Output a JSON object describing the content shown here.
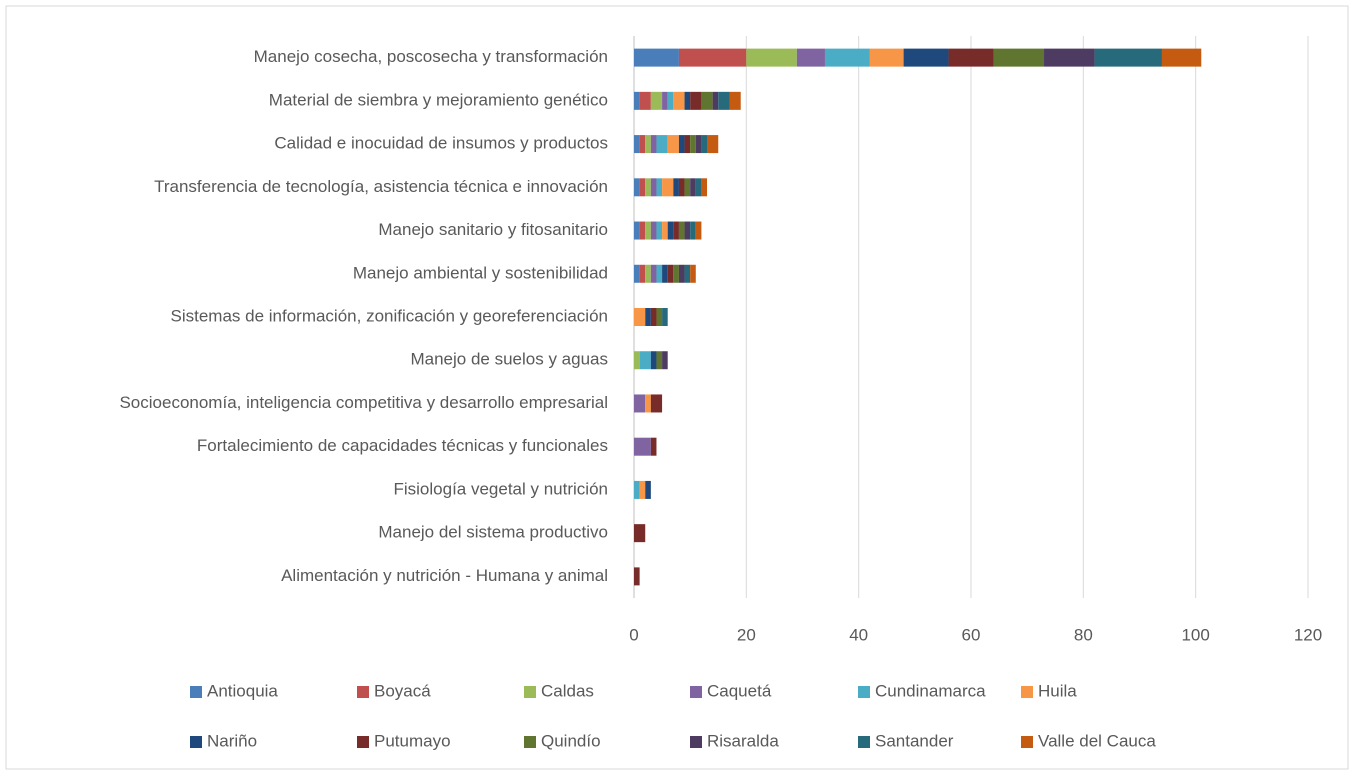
{
  "chart_data": {
    "type": "stacked-bar-horizontal",
    "categories": [
      "Manejo cosecha, poscosecha y transformación",
      "Material de siembra y mejoramiento genético",
      "Calidad e inocuidad de insumos y productos",
      "Transferencia de tecnología, asistencia técnica e innovación",
      "Manejo sanitario y fitosanitario",
      "Manejo ambiental y sostenibilidad",
      "Sistemas de información, zonificación y georeferenciación",
      "Manejo de suelos y aguas",
      "Socioeconomía, inteligencia competitiva y desarrollo empresarial",
      "Fortalecimiento de capacidades técnicas y funcionales",
      "Fisiología vegetal y nutrición",
      "Manejo del sistema productivo",
      "Alimentación y nutrición - Humana y animal"
    ],
    "series": [
      {
        "name": "Antioquia",
        "color": "#4a7ebb",
        "values": [
          8,
          1,
          1,
          1,
          1,
          1,
          0,
          0,
          0,
          0,
          0,
          0,
          0
        ]
      },
      {
        "name": "Boyacá",
        "color": "#c0504d",
        "values": [
          12,
          2,
          1,
          1,
          1,
          1,
          0,
          0,
          0,
          0,
          0,
          0,
          0
        ]
      },
      {
        "name": "Caldas",
        "color": "#9bbb59",
        "values": [
          9,
          2,
          1,
          1,
          1,
          1,
          0,
          1,
          0,
          0,
          0,
          0,
          0
        ]
      },
      {
        "name": "Caquetá",
        "color": "#8064a2",
        "values": [
          5,
          1,
          1,
          1,
          1,
          1,
          0,
          0,
          2,
          3,
          0,
          0,
          0
        ]
      },
      {
        "name": "Cundinamarca",
        "color": "#4bacc6",
        "values": [
          8,
          1,
          2,
          1,
          1,
          1,
          0,
          2,
          0,
          0,
          1,
          0,
          0
        ]
      },
      {
        "name": "Huila",
        "color": "#f79646",
        "values": [
          6,
          2,
          2,
          2,
          1,
          0,
          2,
          0,
          1,
          0,
          1,
          0,
          0
        ]
      },
      {
        "name": "Nariño",
        "color": "#1f497d",
        "values": [
          8,
          1,
          1,
          1,
          1,
          1,
          1,
          1,
          0,
          0,
          1,
          0,
          0
        ]
      },
      {
        "name": "Putumayo",
        "color": "#772c2a",
        "values": [
          8,
          2,
          1,
          1,
          1,
          1,
          1,
          0,
          2,
          1,
          0,
          2,
          1
        ]
      },
      {
        "name": "Quindío",
        "color": "#5f7530",
        "values": [
          9,
          2,
          1,
          1,
          1,
          1,
          1,
          1,
          0,
          0,
          0,
          0,
          0
        ]
      },
      {
        "name": "Risaralda",
        "color": "#4d3b62",
        "values": [
          9,
          1,
          1,
          1,
          1,
          1,
          0,
          1,
          0,
          0,
          0,
          0,
          0
        ]
      },
      {
        "name": "Santander",
        "color": "#276a7c",
        "values": [
          12,
          2,
          1,
          1,
          1,
          1,
          1,
          0,
          0,
          0,
          0,
          0,
          0
        ]
      },
      {
        "name": "Valle del Cauca",
        "color": "#c55a11",
        "values": [
          7,
          2,
          2,
          1,
          1,
          1,
          0,
          0,
          0,
          0,
          0,
          0,
          0
        ]
      }
    ],
    "xlim": [
      0,
      120
    ],
    "xticks": [
      0,
      20,
      40,
      60,
      80,
      100,
      120
    ],
    "grid": true,
    "legend": "bottom"
  }
}
